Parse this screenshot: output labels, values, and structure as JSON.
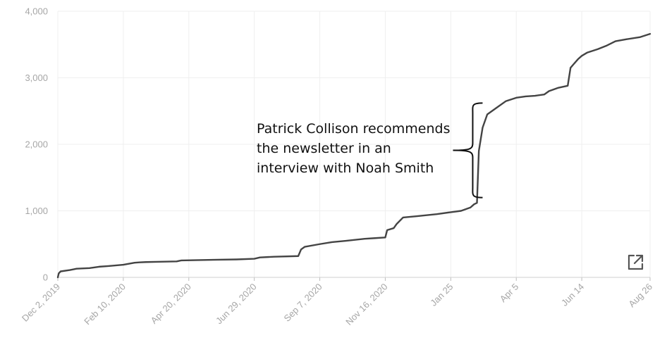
{
  "chart_data": {
    "type": "line",
    "title": "",
    "xlabel": "",
    "ylabel": "",
    "ylim": [
      0,
      4000
    ],
    "yticks": [
      0,
      1000,
      2000,
      3000,
      4000
    ],
    "ytick_labels": [
      "0",
      "1,000",
      "2,000",
      "3,000",
      "4,000"
    ],
    "xlim": [
      "2019-12-02",
      "2021-08-26"
    ],
    "xticks": [
      {
        "date": "2019-12-02",
        "label": "Dec 2, 2019"
      },
      {
        "date": "2020-02-10",
        "label": "Feb 10, 2020"
      },
      {
        "date": "2020-04-20",
        "label": "Apr 20, 2020"
      },
      {
        "date": "2020-06-29",
        "label": "Jun 29, 2020"
      },
      {
        "date": "2020-09-07",
        "label": "Sep 7, 2020"
      },
      {
        "date": "2020-11-16",
        "label": "Nov 16, 2020"
      },
      {
        "date": "2021-01-25",
        "label": "Jan 25"
      },
      {
        "date": "2021-04-05",
        "label": "Apr 5"
      },
      {
        "date": "2021-06-14",
        "label": "Jun 14"
      },
      {
        "date": "2021-08-26",
        "label": "Aug 26"
      }
    ],
    "grid": true,
    "line_color": "#444444",
    "series": [
      {
        "x": [
          "2019-12-02",
          "2019-12-03",
          "2019-12-05",
          "2019-12-15",
          "2019-12-22",
          "2020-01-05",
          "2020-01-15",
          "2020-01-25",
          "2020-02-10",
          "2020-02-22",
          "2020-02-27",
          "2020-03-05",
          "2020-03-20",
          "2020-04-07",
          "2020-04-12",
          "2020-05-01",
          "2020-05-20",
          "2020-06-10",
          "2020-06-29",
          "2020-07-05",
          "2020-07-20",
          "2020-08-15",
          "2020-08-18",
          "2020-08-22",
          "2020-09-07",
          "2020-09-20",
          "2020-10-05",
          "2020-10-25",
          "2020-11-05",
          "2020-11-16",
          "2020-11-18",
          "2020-11-25",
          "2020-11-28",
          "2020-12-05",
          "2020-12-20",
          "2021-01-10",
          "2021-01-25",
          "2021-02-05",
          "2021-02-15",
          "2021-02-19",
          "2021-02-22",
          "2021-02-24",
          "2021-02-28",
          "2021-03-05",
          "2021-03-15",
          "2021-03-25",
          "2021-04-05",
          "2021-04-15",
          "2021-04-25",
          "2021-05-05",
          "2021-05-10",
          "2021-05-20",
          "2021-05-30",
          "2021-06-02",
          "2021-06-05",
          "2021-06-10",
          "2021-06-14",
          "2021-06-20",
          "2021-07-01",
          "2021-07-10",
          "2021-07-20",
          "2021-08-01",
          "2021-08-15",
          "2021-08-26"
        ],
        "y": [
          0,
          60,
          90,
          110,
          130,
          140,
          160,
          170,
          190,
          220,
          225,
          230,
          235,
          240,
          255,
          260,
          265,
          270,
          280,
          300,
          310,
          320,
          420,
          460,
          500,
          530,
          550,
          580,
          590,
          600,
          710,
          740,
          800,
          900,
          920,
          950,
          980,
          1000,
          1050,
          1100,
          1120,
          1900,
          2250,
          2450,
          2550,
          2650,
          2700,
          2720,
          2730,
          2750,
          2800,
          2850,
          2880,
          3150,
          3200,
          3280,
          3330,
          3380,
          3430,
          3480,
          3550,
          3580,
          3610,
          3660
        ]
      }
    ],
    "annotation": {
      "lines": [
        "Patrick Collison recommends",
        "the newsletter in an",
        "interview with Noah Smith"
      ],
      "bracket_date_start": "2021-02-28",
      "bracket_y_bottom": 1200,
      "bracket_y_top": 2620
    }
  },
  "toolbar": {
    "expand_icon": "external-link-icon"
  }
}
